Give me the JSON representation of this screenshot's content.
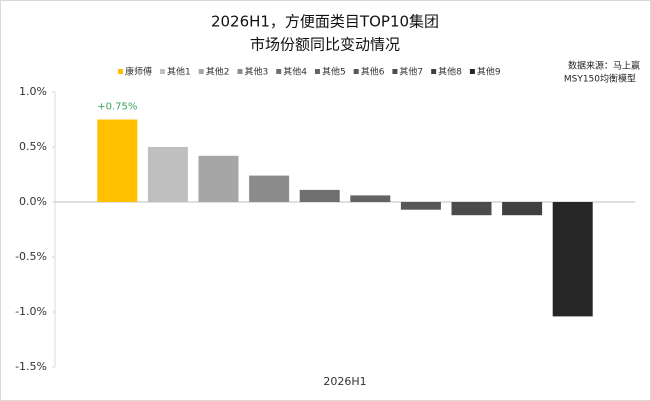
{
  "chart_data": {
    "type": "bar",
    "title": "2026H1，方便面类目TOP10集团",
    "subtitle": "市场份额同比变动情况",
    "source": [
      "数据来源：马上赢",
      "MSY150均衡模型"
    ],
    "categories": [
      "2026H1"
    ],
    "series": [
      {
        "name": "康师傅",
        "color": "#FFC000",
        "values": [
          0.75
        ],
        "value_labels": [
          "+0.75%"
        ]
      },
      {
        "name": "其他1",
        "color": "#BFBFBF",
        "values": [
          0.5
        ]
      },
      {
        "name": "其他2",
        "color": "#A6A6A6",
        "values": [
          0.42
        ]
      },
      {
        "name": "其他3",
        "color": "#8C8C8C",
        "values": [
          0.24
        ]
      },
      {
        "name": "其他4",
        "color": "#6F6F6F",
        "values": [
          0.11
        ]
      },
      {
        "name": "其他5",
        "color": "#636363",
        "values": [
          0.06
        ]
      },
      {
        "name": "其他6",
        "color": "#575757",
        "values": [
          -0.07
        ]
      },
      {
        "name": "其他7",
        "color": "#4B4B4B",
        "values": [
          -0.12
        ]
      },
      {
        "name": "其他8",
        "color": "#404040",
        "values": [
          -0.12
        ]
      },
      {
        "name": "其他9",
        "color": "#262626",
        "values": [
          -1.04
        ]
      }
    ],
    "ylim": [
      -1.5,
      1.0
    ],
    "yticks": [
      {
        "value": -1.5,
        "label": "-1.5%"
      },
      {
        "value": -1.0,
        "label": "-1.0%"
      },
      {
        "value": -0.5,
        "label": "-0.5%"
      },
      {
        "value": 0,
        "label": "0.0%"
      },
      {
        "value": 0.5,
        "label": "0.5%"
      },
      {
        "value": 1.0,
        "label": "1.0%"
      }
    ],
    "grid": false,
    "value_label_color": "#3BA55C"
  }
}
